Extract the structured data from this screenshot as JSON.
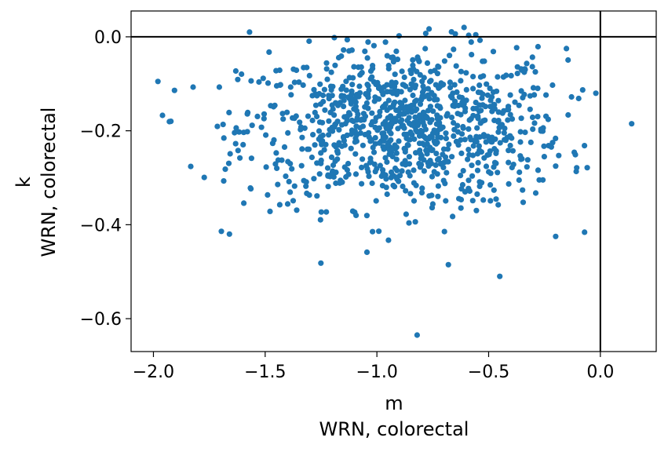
{
  "chart_data": {
    "type": "scatter",
    "title": "",
    "xlabel": [
      "m",
      "WRN, colorectal"
    ],
    "ylabel": [
      "k",
      "WRN, colorectal"
    ],
    "xlim": [
      -2.1,
      0.25
    ],
    "ylim": [
      -0.67,
      0.055
    ],
    "x_ticks": [
      -2.0,
      -1.5,
      -1.0,
      -0.5,
      0.0
    ],
    "x_tick_labels": [
      "−2.0",
      "−1.5",
      "−1.0",
      "−0.5",
      "0.0"
    ],
    "y_ticks": [
      0.0,
      -0.2,
      -0.4,
      -0.6
    ],
    "y_tick_labels": [
      "0.0",
      "−0.2",
      "−0.4",
      "−0.6"
    ],
    "reference_lines": {
      "x": 0.0,
      "y": 0.0
    },
    "grid": false,
    "legend": "none",
    "marker_color": "#1f77b4",
    "point_count": 1000,
    "notable_points": [
      {
        "x": 0.14,
        "y": -0.185
      },
      {
        "x": -0.82,
        "y": -0.635
      },
      {
        "x": -0.45,
        "y": -0.51
      },
      {
        "x": -1.98,
        "y": -0.095
      },
      {
        "x": -1.57,
        "y": 0.01
      },
      {
        "x": -0.61,
        "y": 0.02
      },
      {
        "x": -0.02,
        "y": -0.12
      },
      {
        "x": -1.66,
        "y": -0.42
      },
      {
        "x": -0.68,
        "y": -0.485
      },
      {
        "x": -0.2,
        "y": -0.425
      }
    ]
  }
}
